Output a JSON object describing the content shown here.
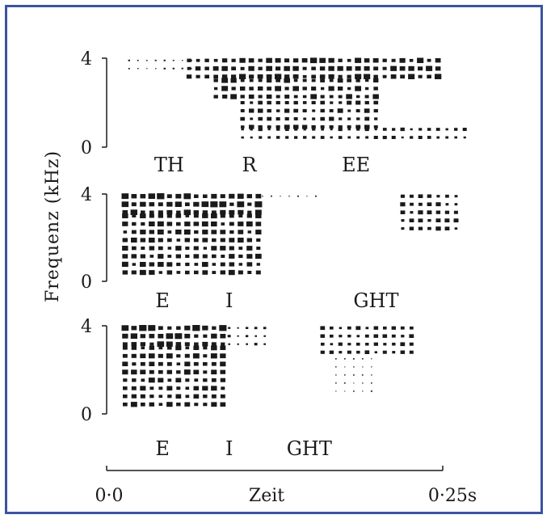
{
  "colors": {
    "frame": "#3a54a0",
    "ink": "#1a1a1a"
  },
  "chart_data": {
    "type": "heatmap",
    "ylabel": "Frequenz (kHz)",
    "xlabel": "Zeit",
    "x_ticks": [
      "0·0",
      "0·25s"
    ],
    "xlim": [
      0,
      0.25
    ],
    "panels": [
      {
        "name": "three",
        "y_ticks": [
          "4",
          "0"
        ],
        "ylim": [
          0,
          4
        ],
        "phonemes": [
          {
            "label": "TH",
            "t": 0.045
          },
          {
            "label": "R",
            "t": 0.105
          },
          {
            "label": "EE",
            "t": 0.185
          }
        ],
        "blobs": [
          {
            "t0": 0.015,
            "t1": 0.065,
            "f0": 3.2,
            "f1": 3.9,
            "level": 0.25
          },
          {
            "t0": 0.06,
            "t1": 0.25,
            "f0": 3.0,
            "f1": 3.9,
            "level": 0.85
          },
          {
            "t0": 0.08,
            "t1": 0.2,
            "f0": 2.0,
            "f1": 3.0,
            "level": 0.8
          },
          {
            "t0": 0.1,
            "t1": 0.2,
            "f0": 0.8,
            "f1": 2.0,
            "level": 0.7
          },
          {
            "t0": 0.1,
            "t1": 0.27,
            "f0": 0.1,
            "f1": 0.8,
            "level": 0.55
          }
        ]
      },
      {
        "name": "eight",
        "y_ticks": [
          "4",
          "0"
        ],
        "ylim": [
          0,
          4
        ],
        "phonemes": [
          {
            "label": "E",
            "t": 0.04
          },
          {
            "label": "I",
            "t": 0.09
          },
          {
            "label": "GHT",
            "t": 0.2
          }
        ],
        "blobs": [
          {
            "t0": 0.012,
            "t1": 0.115,
            "f0": 3.0,
            "f1": 3.9,
            "level": 0.95
          },
          {
            "t0": 0.012,
            "t1": 0.115,
            "f0": 0.1,
            "f1": 3.0,
            "level": 0.8
          },
          {
            "t0": 0.115,
            "t1": 0.16,
            "f0": 3.6,
            "f1": 3.9,
            "level": 0.2
          },
          {
            "t0": 0.22,
            "t1": 0.26,
            "f0": 2.2,
            "f1": 3.9,
            "level": 0.65
          }
        ]
      },
      {
        "name": "eight-2",
        "y_ticks": [
          "4",
          "0"
        ],
        "ylim": [
          0,
          4
        ],
        "phonemes": [
          {
            "label": "E",
            "t": 0.04
          },
          {
            "label": "I",
            "t": 0.09
          },
          {
            "label": "GHT",
            "t": 0.15
          }
        ],
        "blobs": [
          {
            "t0": 0.012,
            "t1": 0.09,
            "f0": 3.0,
            "f1": 3.9,
            "level": 0.95
          },
          {
            "t0": 0.012,
            "t1": 0.09,
            "f0": 0.1,
            "f1": 3.0,
            "level": 0.8
          },
          {
            "t0": 0.09,
            "t1": 0.12,
            "f0": 2.8,
            "f1": 3.9,
            "level": 0.4
          },
          {
            "t0": 0.16,
            "t1": 0.23,
            "f0": 2.5,
            "f1": 3.9,
            "level": 0.6
          },
          {
            "t0": 0.17,
            "t1": 0.2,
            "f0": 0.8,
            "f1": 2.5,
            "level": 0.2
          }
        ]
      }
    ]
  }
}
